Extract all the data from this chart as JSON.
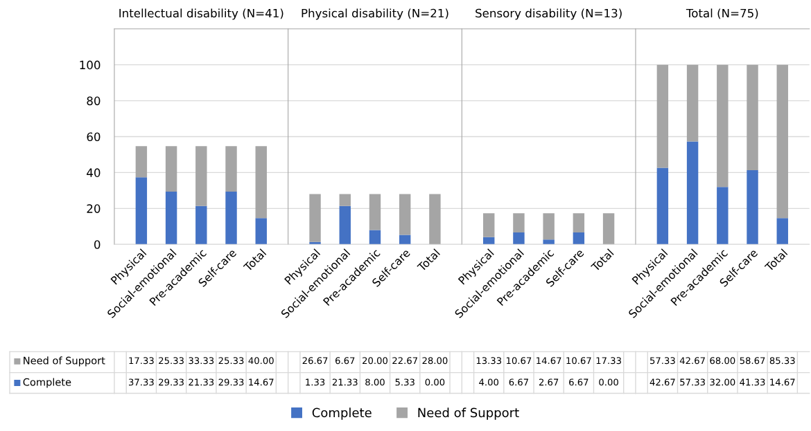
{
  "chart_data": [
    {
      "type": "bar",
      "stacked": true,
      "title": "Intellectual disability (N=41)",
      "categories": [
        "Physical",
        "Social-emotional",
        "Pre-academic",
        "Self-care",
        "Total"
      ],
      "ylim": [
        0,
        120
      ],
      "yticks": [
        0,
        20,
        40,
        60,
        80,
        100
      ],
      "grid": "y",
      "legend": "bottom left",
      "series": [
        {
          "name": "Complete",
          "color": "#4472c4",
          "values": [
            37.33,
            29.33,
            21.33,
            29.33,
            14.67
          ],
          "value_labels": [
            "37.33",
            "29.33",
            "21.33",
            "29.33",
            "14.67"
          ]
        },
        {
          "name": "Need of Support",
          "color": "#a5a5a5",
          "values": [
            17.33,
            25.33,
            33.33,
            25.33,
            40.0
          ],
          "value_labels": [
            "17.33",
            "25.33",
            "33.33",
            "25.33",
            "40.00"
          ]
        }
      ]
    },
    {
      "type": "bar",
      "stacked": true,
      "title": "Physical disability (N=21)",
      "categories": [
        "Physical",
        "Social-emotional",
        "Pre-academic",
        "Self-care",
        "Total"
      ],
      "ylim": [
        0,
        120
      ],
      "yticks": [
        0,
        20,
        40,
        60,
        80,
        100
      ],
      "grid": "y",
      "tick_labels": "x",
      "legend": "bottom",
      "series": [
        {
          "name": "Complete",
          "color": "#4472c4",
          "values": [
            1.33,
            21.33,
            8.0,
            5.33,
            0.0
          ],
          "value_labels": [
            "1.33",
            "21.33",
            "8.00",
            "5.33",
            "0.00"
          ]
        },
        {
          "name": "Need of Support",
          "color": "#a5a5a5",
          "values": [
            26.67,
            6.67,
            20.0,
            22.67,
            28.0
          ],
          "value_labels": [
            "26.67",
            "6.67",
            "20.00",
            "22.67",
            "28.00"
          ]
        }
      ]
    },
    {
      "type": "bar",
      "stacked": true,
      "title": "Sensory disability (N=13)",
      "categories": [
        "Physical",
        "Social-emotional",
        "Pre-academic",
        "Self-care",
        "Total"
      ],
      "ylim": [
        0,
        120
      ],
      "yticks": [
        0,
        20,
        40,
        60,
        80,
        100
      ],
      "grid": "y",
      "tick_labels": "x",
      "series": [
        {
          "color": "#4472c4",
          "values": [
            4.0,
            6.67,
            2.67,
            6.67,
            0.0
          ],
          "value_labels": [
            "4.00",
            "6.67",
            "2.67",
            "6.67",
            "0.00"
          ]
        },
        {
          "color": "#a5a5a5",
          "values": [
            13.33,
            10.67,
            14.67,
            10.67,
            17.33
          ],
          "value_labels": [
            "13.33",
            "10.67",
            "14.67",
            "10.67",
            "17.33"
          ]
        }
      ]
    },
    {
      "type": "bar",
      "stacked": true,
      "title": "Total (N=75)",
      "categories": [
        "Physical",
        "Social-emotional",
        "Pre-academic",
        "Self-care",
        "Total"
      ],
      "ylim": [
        0,
        120
      ],
      "yticks": [
        0,
        20,
        40,
        60,
        80,
        100
      ],
      "grid": "y",
      "tick_labels": "x",
      "series": [
        {
          "color": "#4472c4",
          "values": [
            42.67,
            57.33,
            32.0,
            41.33,
            14.67
          ],
          "value_labels": [
            "42.67",
            "57.33",
            "32.00",
            "41.33",
            "14.67"
          ]
        },
        {
          "color": "#a5a5a5",
          "values": [
            57.33,
            42.67,
            68.0,
            58.67,
            85.33
          ],
          "value_labels": [
            "57.33",
            "42.67",
            "68.00",
            "58.67",
            "85.33"
          ]
        }
      ]
    }
  ]
}
